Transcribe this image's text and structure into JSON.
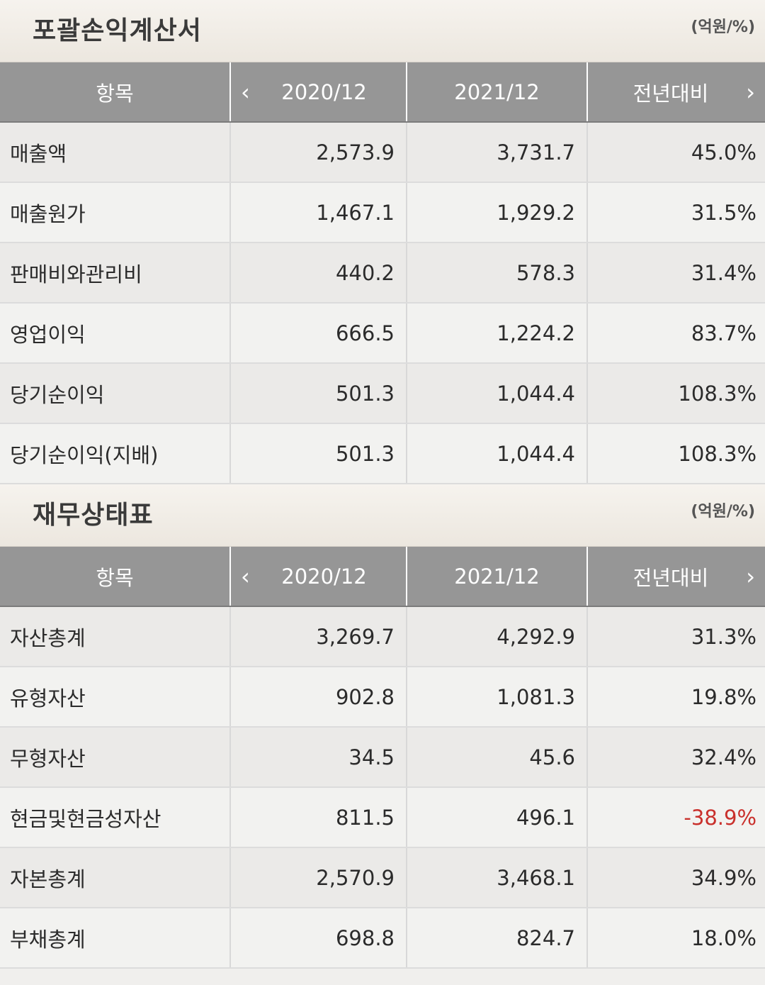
{
  "colors": {
    "header_bg": "#969696",
    "negative": "#c9302c",
    "title_bar_bg": "#ece7df"
  },
  "income_statement": {
    "title": "포괄손익계산서",
    "unit": "(억원/%)",
    "headers": {
      "item": "항목",
      "period1": "2020/12",
      "period2": "2021/12",
      "yoy": "전년대비",
      "prev_icon": "chevron-left-icon",
      "next_icon": "chevron-right-icon"
    },
    "rows": [
      {
        "label": "매출액",
        "v2020": "2,573.9",
        "v2021": "3,731.7",
        "yoy": "45.0%"
      },
      {
        "label": "매출원가",
        "v2020": "1,467.1",
        "v2021": "1,929.2",
        "yoy": "31.5%"
      },
      {
        "label": "판매비와관리비",
        "v2020": "440.2",
        "v2021": "578.3",
        "yoy": "31.4%"
      },
      {
        "label": "영업이익",
        "v2020": "666.5",
        "v2021": "1,224.2",
        "yoy": "83.7%"
      },
      {
        "label": "당기순이익",
        "v2020": "501.3",
        "v2021": "1,044.4",
        "yoy": "108.3%"
      },
      {
        "label": "당기순이익(지배)",
        "v2020": "501.3",
        "v2021": "1,044.4",
        "yoy": "108.3%"
      }
    ]
  },
  "balance_sheet": {
    "title": "재무상태표",
    "unit": "(억원/%)",
    "headers": {
      "item": "항목",
      "period1": "2020/12",
      "period2": "2021/12",
      "yoy": "전년대비",
      "prev_icon": "chevron-left-icon",
      "next_icon": "chevron-right-icon"
    },
    "rows": [
      {
        "label": "자산총계",
        "v2020": "3,269.7",
        "v2021": "4,292.9",
        "yoy": "31.3%"
      },
      {
        "label": "유형자산",
        "v2020": "902.8",
        "v2021": "1,081.3",
        "yoy": "19.8%"
      },
      {
        "label": "무형자산",
        "v2020": "34.5",
        "v2021": "45.6",
        "yoy": "32.4%"
      },
      {
        "label": "현금및현금성자산",
        "v2020": "811.5",
        "v2021": "496.1",
        "yoy": "-38.9%"
      },
      {
        "label": "자본총계",
        "v2020": "2,570.9",
        "v2021": "3,468.1",
        "yoy": "34.9%"
      },
      {
        "label": "부채총계",
        "v2020": "698.8",
        "v2021": "824.7",
        "yoy": "18.0%"
      }
    ]
  }
}
